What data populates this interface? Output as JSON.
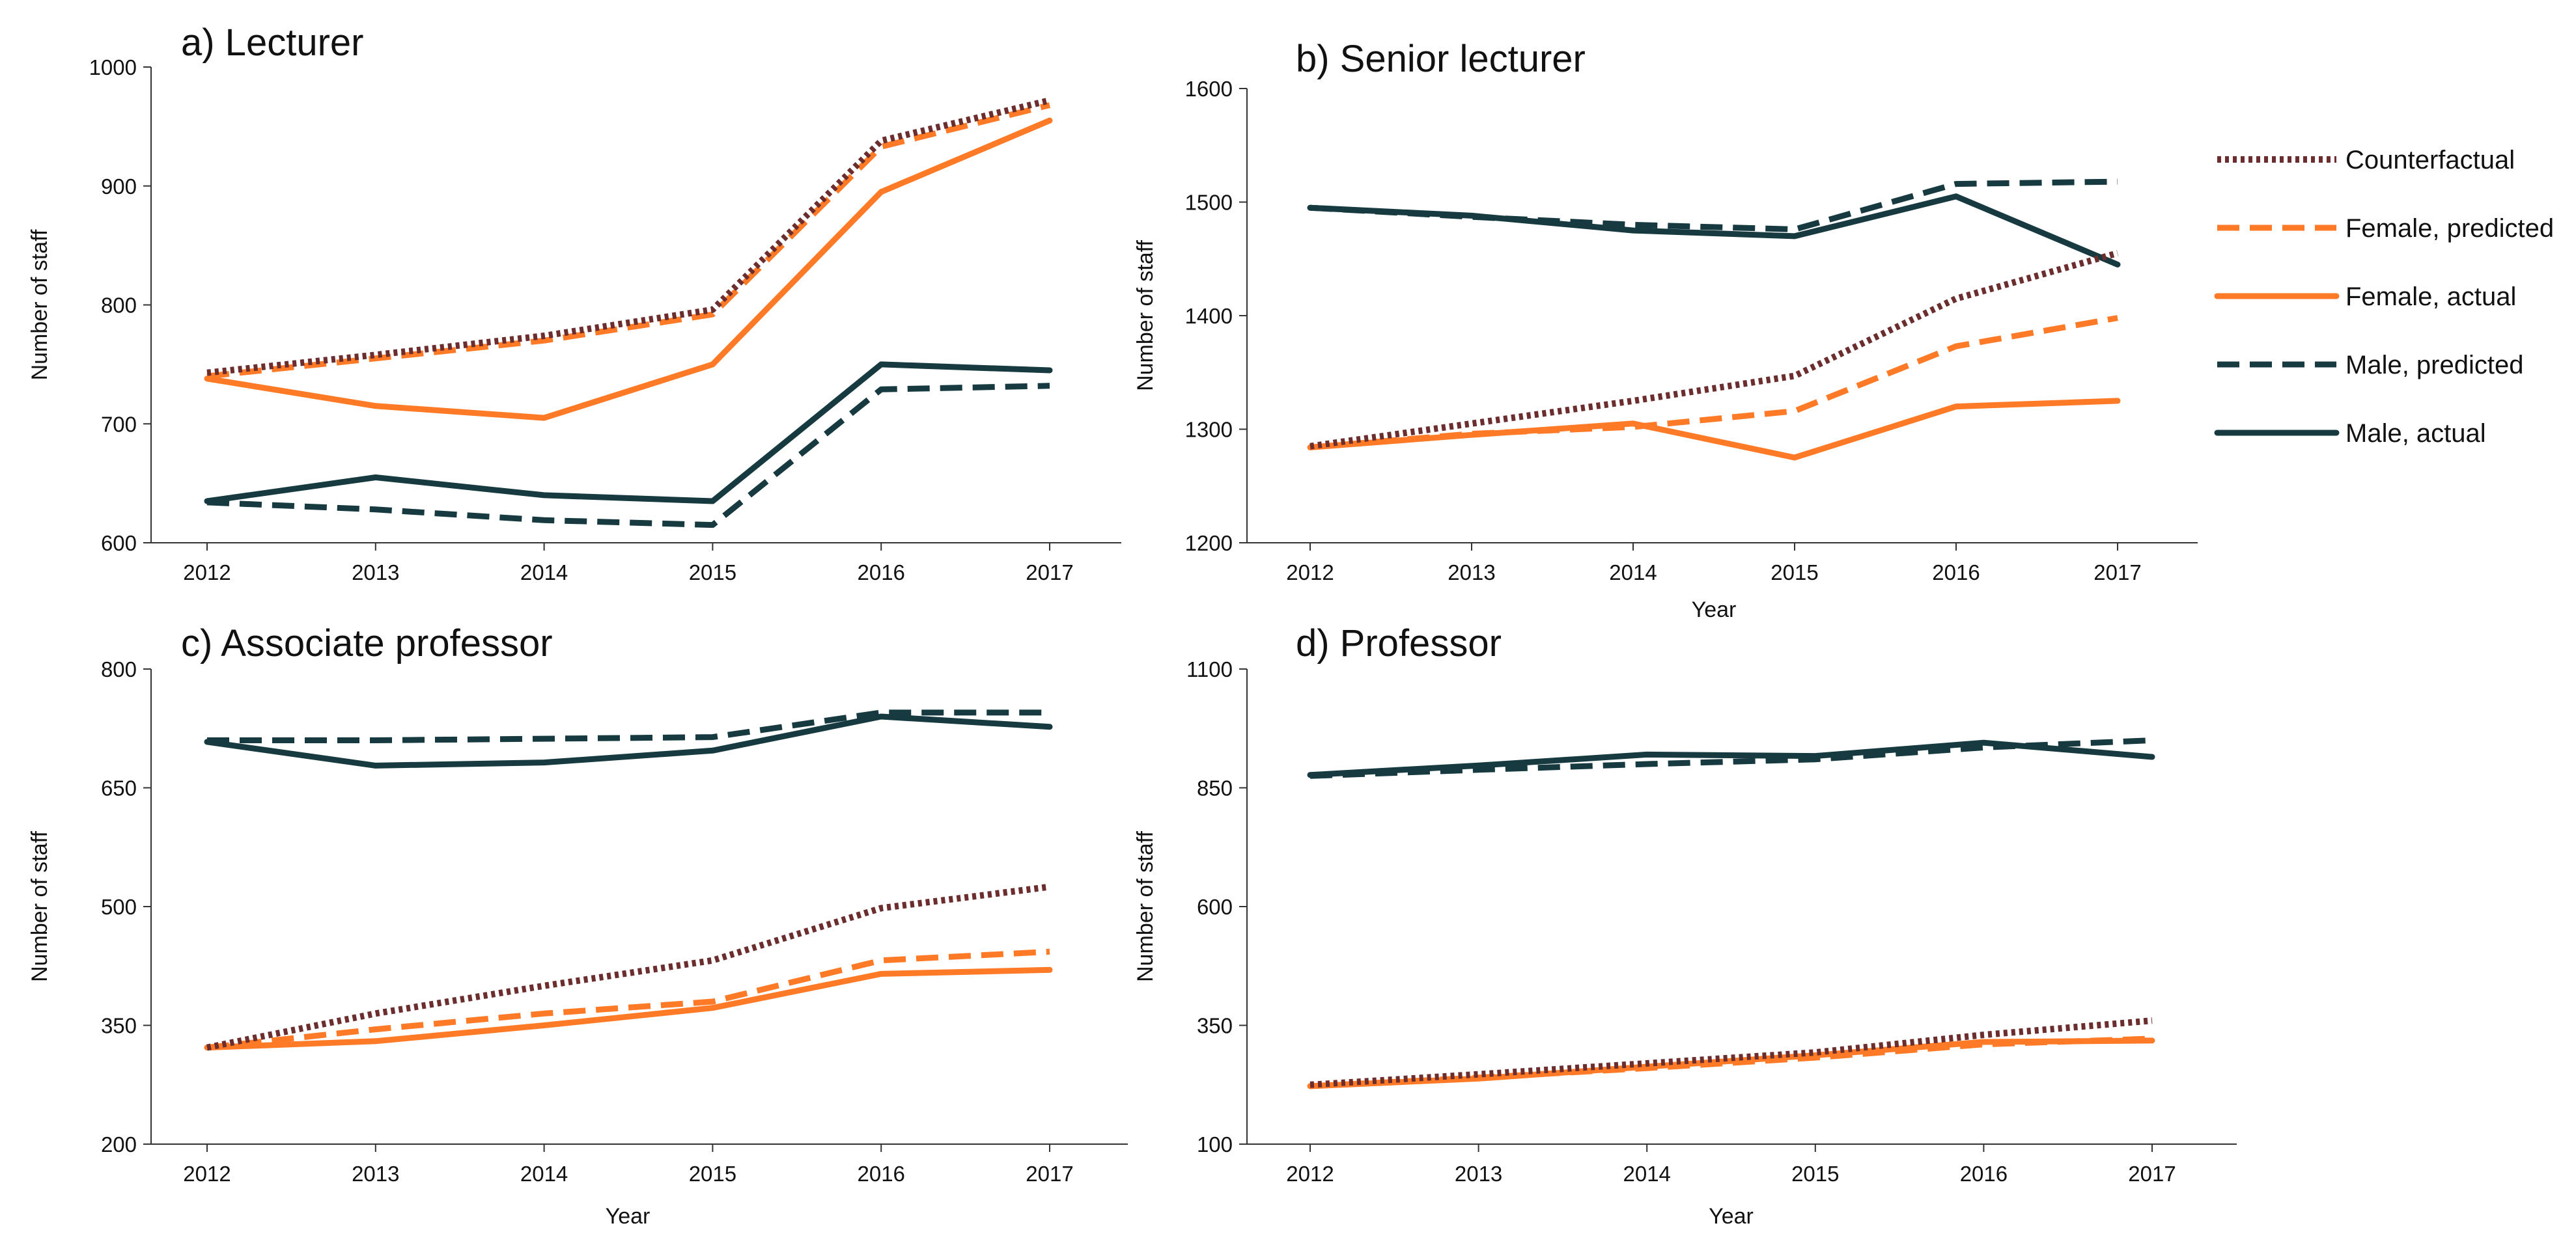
{
  "colors": {
    "counterfactual": "#6b2d2d",
    "female": "#ff7a26",
    "male": "#163a40",
    "axis": "#333333"
  },
  "legend": [
    {
      "key": "counterfactual",
      "label": "Counterfactual",
      "style": "dotted",
      "color": "#6b2d2d"
    },
    {
      "key": "female_predicted",
      "label": "Female, predicted",
      "style": "dashed",
      "color": "#ff7a26"
    },
    {
      "key": "female_actual",
      "label": "Female, actual",
      "style": "solid",
      "color": "#ff7a26"
    },
    {
      "key": "male_predicted",
      "label": "Male, predicted",
      "style": "dashed",
      "color": "#163a40"
    },
    {
      "key": "male_actual",
      "label": "Male, actual",
      "style": "solid",
      "color": "#163a40"
    }
  ],
  "chart_data": [
    {
      "type": "line",
      "title": "a) Lecturer",
      "xlabel": "",
      "ylabel": "Number of staff",
      "x": [
        2012,
        2013,
        2014,
        2015,
        2016,
        2017
      ],
      "ylim": [
        600,
        1000
      ],
      "yticks": [
        600,
        700,
        800,
        900,
        1000
      ],
      "series": [
        {
          "name": "Counterfactual",
          "values": [
            743,
            758,
            774,
            796,
            938,
            972
          ]
        },
        {
          "name": "Female, predicted",
          "values": [
            740,
            755,
            770,
            792,
            933,
            968
          ]
        },
        {
          "name": "Female, actual",
          "values": [
            738,
            715,
            705,
            750,
            895,
            955
          ]
        },
        {
          "name": "Male, predicted",
          "values": [
            634,
            628,
            619,
            615,
            729,
            732
          ]
        },
        {
          "name": "Male, actual",
          "values": [
            635,
            655,
            640,
            635,
            750,
            745
          ]
        }
      ]
    },
    {
      "type": "line",
      "title": "b) Senior lecturer",
      "xlabel": "Year",
      "ylabel": "Number of staff",
      "x": [
        2012,
        2013,
        2014,
        2015,
        2016,
        2017
      ],
      "ylim": [
        1200,
        1600
      ],
      "yticks": [
        1200,
        1300,
        1400,
        1500,
        1600
      ],
      "series": [
        {
          "name": "Counterfactual",
          "values": [
            1285,
            1305,
            1325,
            1347,
            1415,
            1455
          ]
        },
        {
          "name": "Female, predicted",
          "values": [
            1284,
            1296,
            1302,
            1316,
            1373,
            1398
          ]
        },
        {
          "name": "Female, actual",
          "values": [
            1284,
            1295,
            1305,
            1275,
            1320,
            1325
          ]
        },
        {
          "name": "Male, predicted",
          "values": [
            1495,
            1487,
            1480,
            1476,
            1516,
            1518
          ]
        },
        {
          "name": "Male, actual",
          "values": [
            1495,
            1488,
            1475,
            1470,
            1505,
            1445
          ]
        }
      ]
    },
    {
      "type": "line",
      "title": "c) Associate professor",
      "xlabel": "Year",
      "ylabel": "Number of staff",
      "x": [
        2012,
        2013,
        2014,
        2015,
        2016,
        2017
      ],
      "ylim": [
        200,
        800
      ],
      "yticks": [
        200,
        350,
        500,
        650,
        800
      ],
      "series": [
        {
          "name": "Counterfactual",
          "values": [
            322,
            365,
            400,
            432,
            498,
            525
          ]
        },
        {
          "name": "Female, predicted",
          "values": [
            322,
            345,
            365,
            380,
            432,
            443
          ]
        },
        {
          "name": "Female, actual",
          "values": [
            322,
            330,
            350,
            372,
            415,
            420
          ]
        },
        {
          "name": "Male, predicted",
          "values": [
            710,
            710,
            712,
            714,
            745,
            745
          ]
        },
        {
          "name": "Male, actual",
          "values": [
            708,
            678,
            682,
            697,
            740,
            727
          ]
        }
      ]
    },
    {
      "type": "line",
      "title": "d) Professor",
      "xlabel": "Year",
      "ylabel": "Number of staff",
      "x": [
        2012,
        2013,
        2014,
        2015,
        2016,
        2017
      ],
      "ylim": [
        100,
        1100
      ],
      "yticks": [
        100,
        350,
        600,
        850,
        1100
      ],
      "series": [
        {
          "name": "Counterfactual",
          "values": [
            225,
            247,
            270,
            293,
            330,
            360
          ]
        },
        {
          "name": "Female, predicted",
          "values": [
            222,
            240,
            260,
            282,
            310,
            322
          ]
        },
        {
          "name": "Female, actual",
          "values": [
            222,
            238,
            263,
            287,
            315,
            318
          ]
        },
        {
          "name": "Male, predicted",
          "values": [
            875,
            888,
            900,
            910,
            935,
            950
          ]
        },
        {
          "name": "Male, actual",
          "values": [
            877,
            897,
            920,
            917,
            945,
            915
          ]
        }
      ]
    }
  ]
}
